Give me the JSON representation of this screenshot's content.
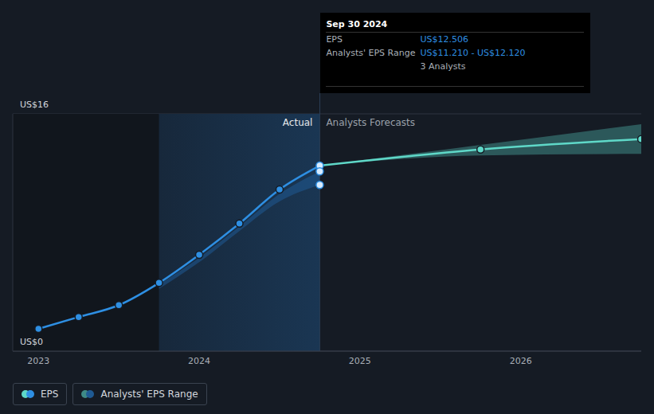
{
  "chart_data": {
    "type": "line",
    "x": [
      2023,
      2023.25,
      2023.5,
      2023.75,
      2024,
      2024.25,
      2024.5,
      2024.75,
      2025.75,
      2026.75
    ],
    "xlim": [
      2022.84,
      2026.75
    ],
    "xticks": [
      2023,
      2024,
      2025,
      2026
    ],
    "ylim": [
      0,
      16
    ],
    "yticks": [
      {
        "value": 0,
        "label": "US$0"
      },
      {
        "value": 16,
        "label": "US$16"
      }
    ],
    "grid": true,
    "series": [
      {
        "name": "EPS",
        "type": "line",
        "color": "#2e8fe3",
        "marker": "circle",
        "values": [
          1.5,
          2.3,
          3.1,
          4.6,
          6.5,
          8.6,
          10.9,
          12.506,
          null,
          null
        ]
      },
      {
        "name": "EPS",
        "type": "line",
        "color": "#5fd8c8",
        "marker": "circle",
        "values": [
          null,
          null,
          null,
          null,
          null,
          null,
          null,
          12.506,
          13.6,
          14.3
        ]
      },
      {
        "name": "Analysts' EPS Range",
        "type": "area",
        "color": "#1f5a93",
        "low": [
          null,
          null,
          null,
          4.2,
          6.0,
          8.1,
          10.1,
          11.21,
          null,
          null
        ],
        "high": [
          null,
          null,
          null,
          4.5,
          6.3,
          8.4,
          10.6,
          12.12,
          null,
          null
        ]
      },
      {
        "name": "Analysts' EPS Range",
        "type": "area",
        "color": "#3f8a86",
        "low": [
          null,
          null,
          null,
          null,
          null,
          null,
          null,
          12.506,
          13.2,
          13.3
        ],
        "high": [
          null,
          null,
          null,
          null,
          null,
          null,
          null,
          12.506,
          13.9,
          15.3
        ]
      }
    ],
    "annotations": [
      "Actual",
      "Analysts Forecasts"
    ],
    "tooltip": {
      "date": "Sep 30 2024",
      "rows": [
        {
          "label": "EPS",
          "value": "US$12.506"
        },
        {
          "label": "Analysts' EPS Range",
          "value": "US$11.210 - US$12.120"
        }
      ],
      "note": "3 Analysts"
    }
  }
}
